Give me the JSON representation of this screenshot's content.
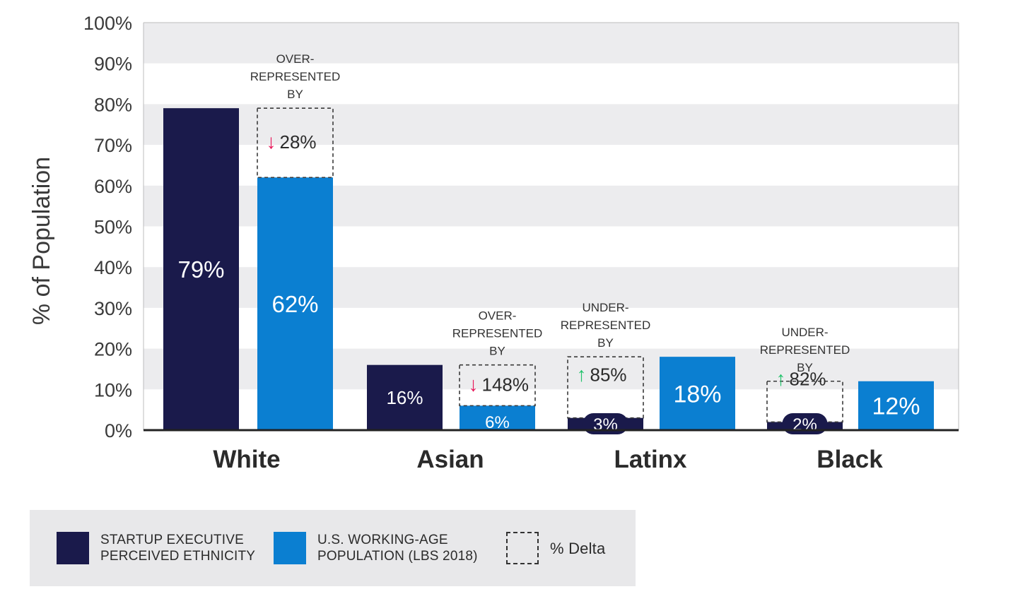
{
  "chart_data": {
    "type": "bar",
    "ylabel": "% of Population",
    "ylim": [
      0,
      100
    ],
    "yticks": [
      "0%",
      "10%",
      "20%",
      "30%",
      "40%",
      "50%",
      "60%",
      "70%",
      "80%",
      "90%",
      "100%"
    ],
    "grid": "alternating horizontal bands",
    "categories": [
      "White",
      "Asian",
      "Latinx",
      "Black"
    ],
    "series": [
      {
        "name": "STARTUP EXECUTIVE PERCEIVED ETHNICITY",
        "color": "#1a1a4b",
        "values": [
          79,
          16,
          3,
          2
        ],
        "labels": [
          "79%",
          "16%",
          "3%",
          "2%"
        ]
      },
      {
        "name": "U.S. WORKING-AGE POPULATION (LBS 2018)",
        "color": "#0b7fd1",
        "values": [
          62,
          6,
          18,
          12
        ],
        "labels": [
          "62%",
          "6%",
          "18%",
          "12%"
        ]
      }
    ],
    "deltas": [
      {
        "category": "White",
        "status_lines": [
          "OVER-",
          "REPRESENTED",
          "BY"
        ],
        "arrow": "↓",
        "arrow_color": "#e8195b",
        "value": "28%"
      },
      {
        "category": "Asian",
        "status_lines": [
          "OVER-",
          "REPRESENTED",
          "BY"
        ],
        "arrow": "↓",
        "arrow_color": "#e8195b",
        "value": "148%"
      },
      {
        "category": "Latinx",
        "status_lines": [
          "UNDER-",
          "REPRESENTED",
          "BY"
        ],
        "arrow": "↑",
        "arrow_color": "#22c26b",
        "value": "85%"
      },
      {
        "category": "Black",
        "status_lines": [
          "UNDER-",
          "REPRESENTED",
          "BY"
        ],
        "arrow": "↑",
        "arrow_color": "#22c26b",
        "value": "82%"
      }
    ]
  },
  "legend": {
    "items": [
      {
        "label": "STARTUP EXECUTIVE\nPERCEIVED ETHNICITY",
        "color": "#1a1a4b",
        "style": "solid"
      },
      {
        "label": "U.S. WORKING-AGE\nPOPULATION (LBS 2018)",
        "color": "#0b7fd1",
        "style": "solid"
      },
      {
        "label": "% Delta",
        "color": "#333333",
        "style": "dashed"
      }
    ]
  }
}
